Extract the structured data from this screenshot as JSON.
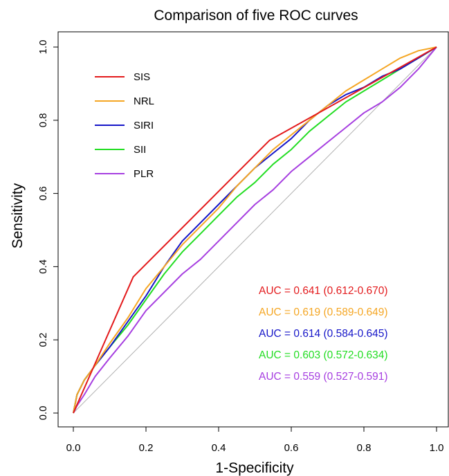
{
  "chart_data": {
    "type": "line",
    "title": "Comparison of five ROC curves",
    "xlabel": "1-Specificity",
    "ylabel": "Sensitivity",
    "xlim": [
      0,
      1
    ],
    "ylim": [
      0,
      1
    ],
    "xticks": [
      "0.0",
      "0.2",
      "0.4",
      "0.6",
      "0.8",
      "1.0"
    ],
    "yticks": [
      "0.0",
      "0.2",
      "0.4",
      "0.6",
      "0.8",
      "1.0"
    ],
    "grid": false,
    "legend_position": "top-left",
    "reference_line": {
      "x": [
        0,
        1
      ],
      "y": [
        0,
        1
      ],
      "color": "#b0b0b0"
    },
    "series": [
      {
        "name": "SIS",
        "color": "#e31a1c",
        "auc_label": "AUC = 0.641 (0.612-0.670)",
        "x": [
          0,
          0.165,
          0.54,
          1.0
        ],
        "y": [
          0,
          0.372,
          0.745,
          1.0
        ]
      },
      {
        "name": "NRL",
        "color": "#f5a623",
        "auc_label": "AUC = 0.619 (0.589-0.649)",
        "x": [
          0,
          0.01,
          0.03,
          0.06,
          0.1,
          0.15,
          0.2,
          0.25,
          0.3,
          0.35,
          0.4,
          0.45,
          0.5,
          0.55,
          0.6,
          0.65,
          0.7,
          0.75,
          0.8,
          0.85,
          0.9,
          0.95,
          1.0
        ],
        "y": [
          0,
          0.05,
          0.09,
          0.13,
          0.19,
          0.26,
          0.34,
          0.4,
          0.46,
          0.51,
          0.56,
          0.62,
          0.67,
          0.72,
          0.76,
          0.8,
          0.84,
          0.88,
          0.91,
          0.94,
          0.97,
          0.99,
          1.0
        ]
      },
      {
        "name": "SIRI",
        "color": "#1515c8",
        "auc_label": "AUC = 0.614 (0.584-0.645)",
        "x": [
          0,
          0.01,
          0.03,
          0.06,
          0.1,
          0.15,
          0.2,
          0.25,
          0.3,
          0.35,
          0.4,
          0.45,
          0.5,
          0.55,
          0.6,
          0.65,
          0.7,
          0.75,
          0.8,
          0.85,
          0.9,
          0.95,
          1.0
        ],
        "y": [
          0,
          0.05,
          0.09,
          0.13,
          0.18,
          0.25,
          0.32,
          0.4,
          0.47,
          0.52,
          0.57,
          0.62,
          0.67,
          0.71,
          0.75,
          0.8,
          0.84,
          0.87,
          0.89,
          0.92,
          0.94,
          0.97,
          1.0
        ]
      },
      {
        "name": "SII",
        "color": "#22dd22",
        "auc_label": "AUC = 0.603 (0.572-0.634)",
        "x": [
          0,
          0.01,
          0.03,
          0.06,
          0.1,
          0.15,
          0.2,
          0.25,
          0.3,
          0.35,
          0.4,
          0.45,
          0.5,
          0.55,
          0.6,
          0.65,
          0.7,
          0.75,
          0.8,
          0.85,
          0.9,
          0.95,
          1.0
        ],
        "y": [
          0,
          0.05,
          0.09,
          0.13,
          0.18,
          0.24,
          0.31,
          0.38,
          0.44,
          0.49,
          0.54,
          0.59,
          0.63,
          0.68,
          0.72,
          0.77,
          0.81,
          0.85,
          0.88,
          0.91,
          0.94,
          0.97,
          1.0
        ]
      },
      {
        "name": "PLR",
        "color": "#a63ee0",
        "auc_label": "AUC = 0.559 (0.527-0.591)",
        "x": [
          0,
          0.01,
          0.03,
          0.06,
          0.1,
          0.15,
          0.2,
          0.25,
          0.3,
          0.35,
          0.4,
          0.45,
          0.5,
          0.55,
          0.6,
          0.65,
          0.7,
          0.75,
          0.8,
          0.85,
          0.9,
          0.95,
          1.0
        ],
        "y": [
          0,
          0.02,
          0.05,
          0.1,
          0.15,
          0.21,
          0.28,
          0.33,
          0.38,
          0.42,
          0.47,
          0.52,
          0.57,
          0.61,
          0.66,
          0.7,
          0.74,
          0.78,
          0.82,
          0.85,
          0.89,
          0.94,
          1.0
        ]
      }
    ]
  }
}
